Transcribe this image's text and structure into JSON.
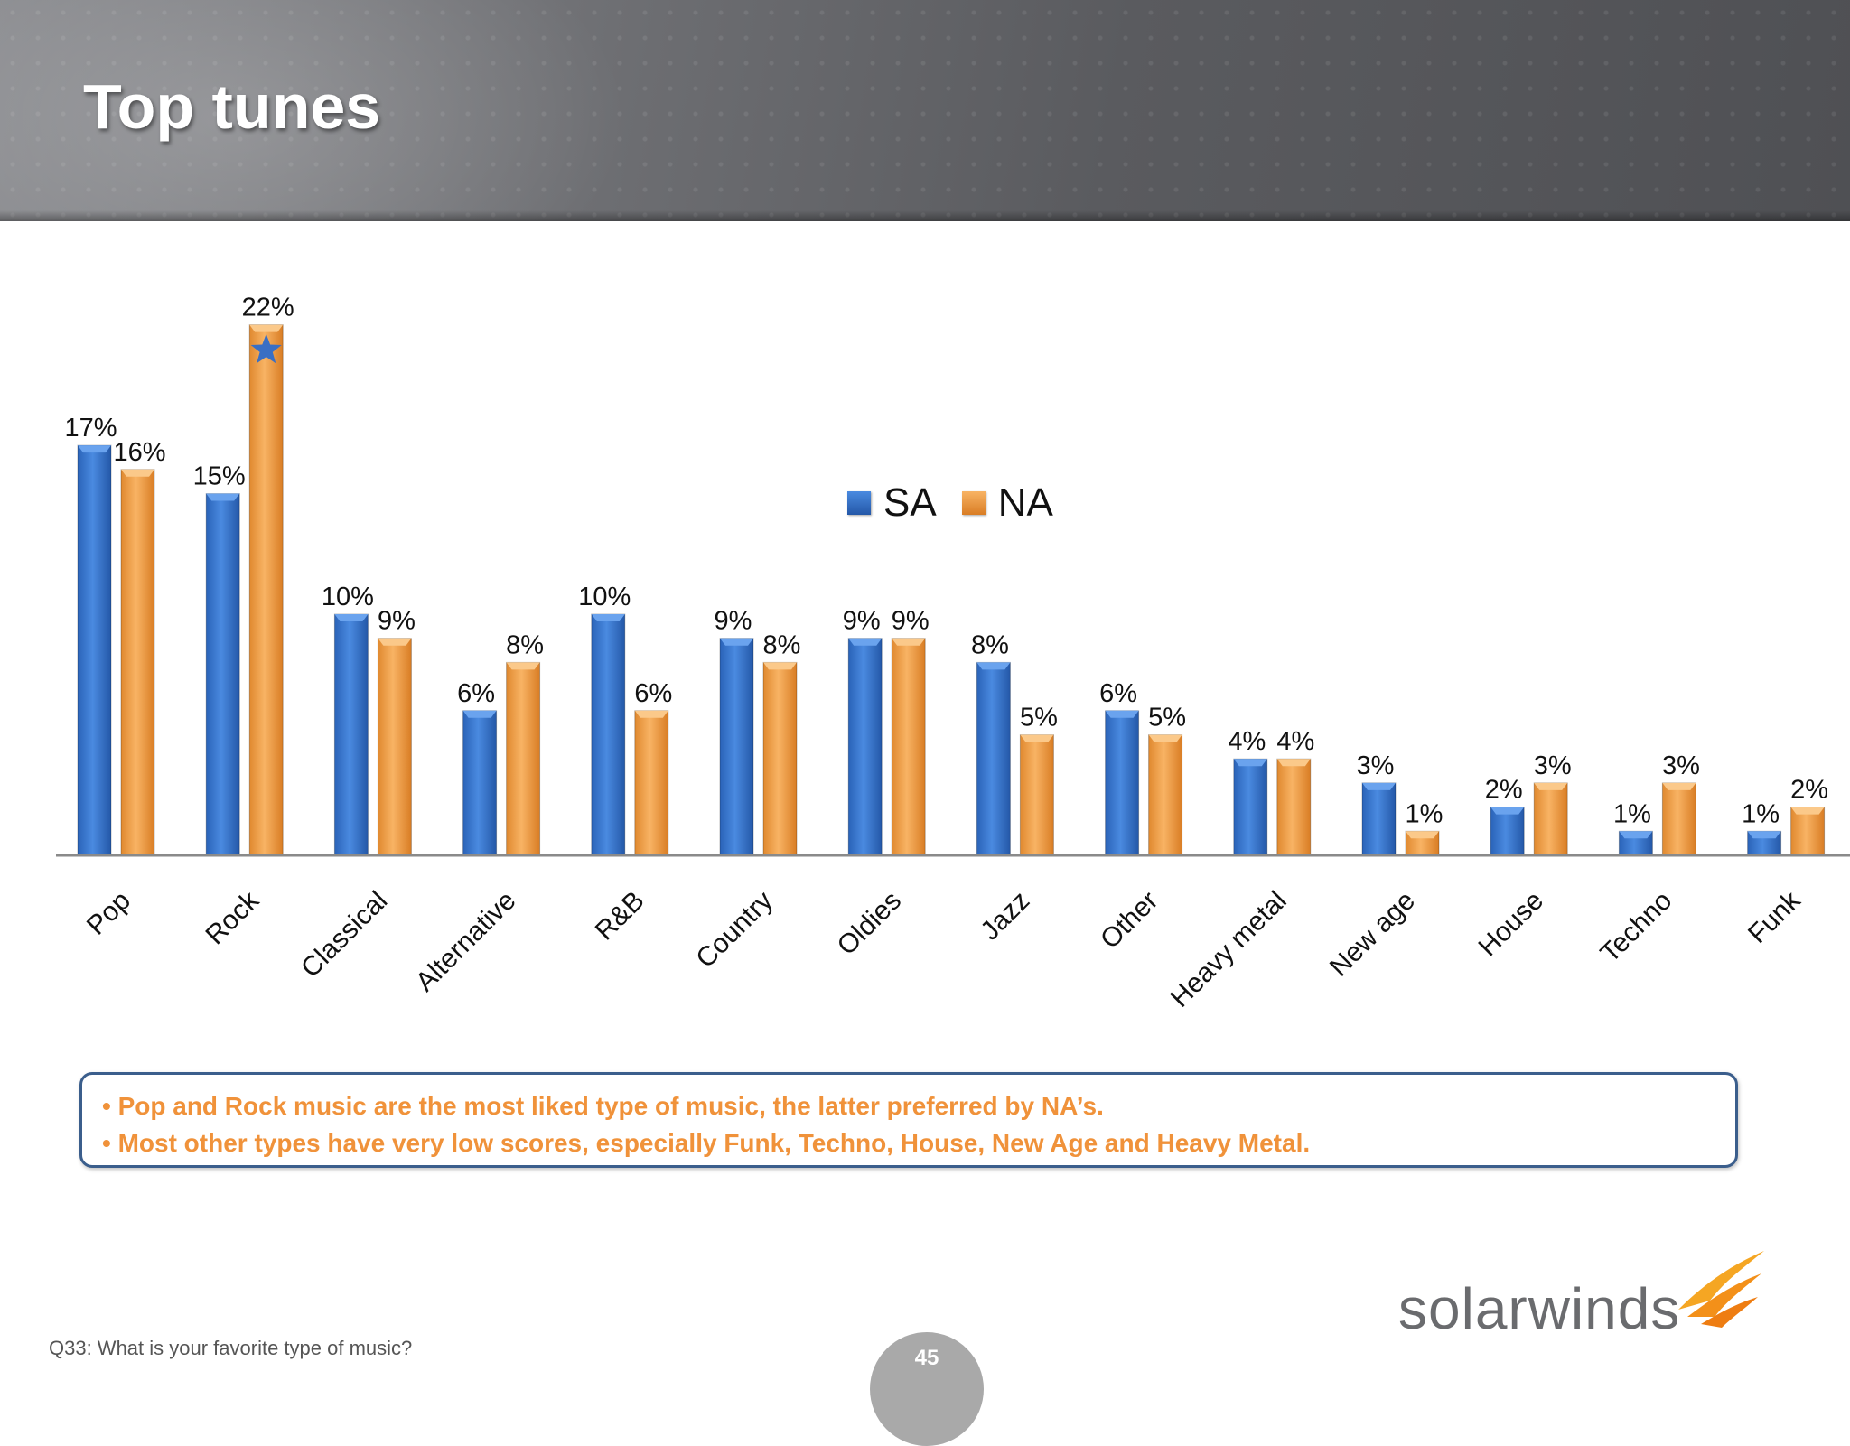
{
  "slide": {
    "title": "Top tunes",
    "footnote": "Q33: What is your favorite type of music?",
    "page_number": "45"
  },
  "colors": {
    "sa": "#3a7bd5",
    "na": "#f4a24e",
    "highlight_star": "#3a6fc4"
  },
  "legend": {
    "items": [
      {
        "label": "SA",
        "color": "#3a7bd5"
      },
      {
        "label": "NA",
        "color": "#f4a24e"
      }
    ]
  },
  "chart_data": {
    "type": "bar",
    "categories": [
      "Pop",
      "Rock",
      "Classical",
      "Alternative",
      "R&B",
      "Country",
      "Oldies",
      "Jazz",
      "Other",
      "Heavy metal",
      "New age",
      "House",
      "Techno",
      "Funk"
    ],
    "series": [
      {
        "name": "SA",
        "values": [
          17,
          15,
          10,
          6,
          10,
          9,
          9,
          8,
          6,
          4,
          3,
          2,
          1,
          1
        ]
      },
      {
        "name": "NA",
        "values": [
          16,
          22,
          9,
          8,
          6,
          8,
          9,
          5,
          5,
          4,
          1,
          3,
          3,
          2
        ]
      }
    ],
    "value_format": "percent",
    "data_labels": true,
    "ylim": [
      0,
      25
    ],
    "grid": false,
    "legend_position": "center-right",
    "highlight": {
      "category": "Rock",
      "series": "NA",
      "marker": "star"
    }
  },
  "callout": {
    "bullets": [
      "• Pop and Rock music are the most liked type of music, the latter preferred by NA’s.",
      "• Most other types have very low scores, especially Funk, Techno, House, New Age and Heavy Metal."
    ]
  },
  "logo": {
    "text": "solarwinds",
    "icon": "solarwinds-flame-icon"
  }
}
